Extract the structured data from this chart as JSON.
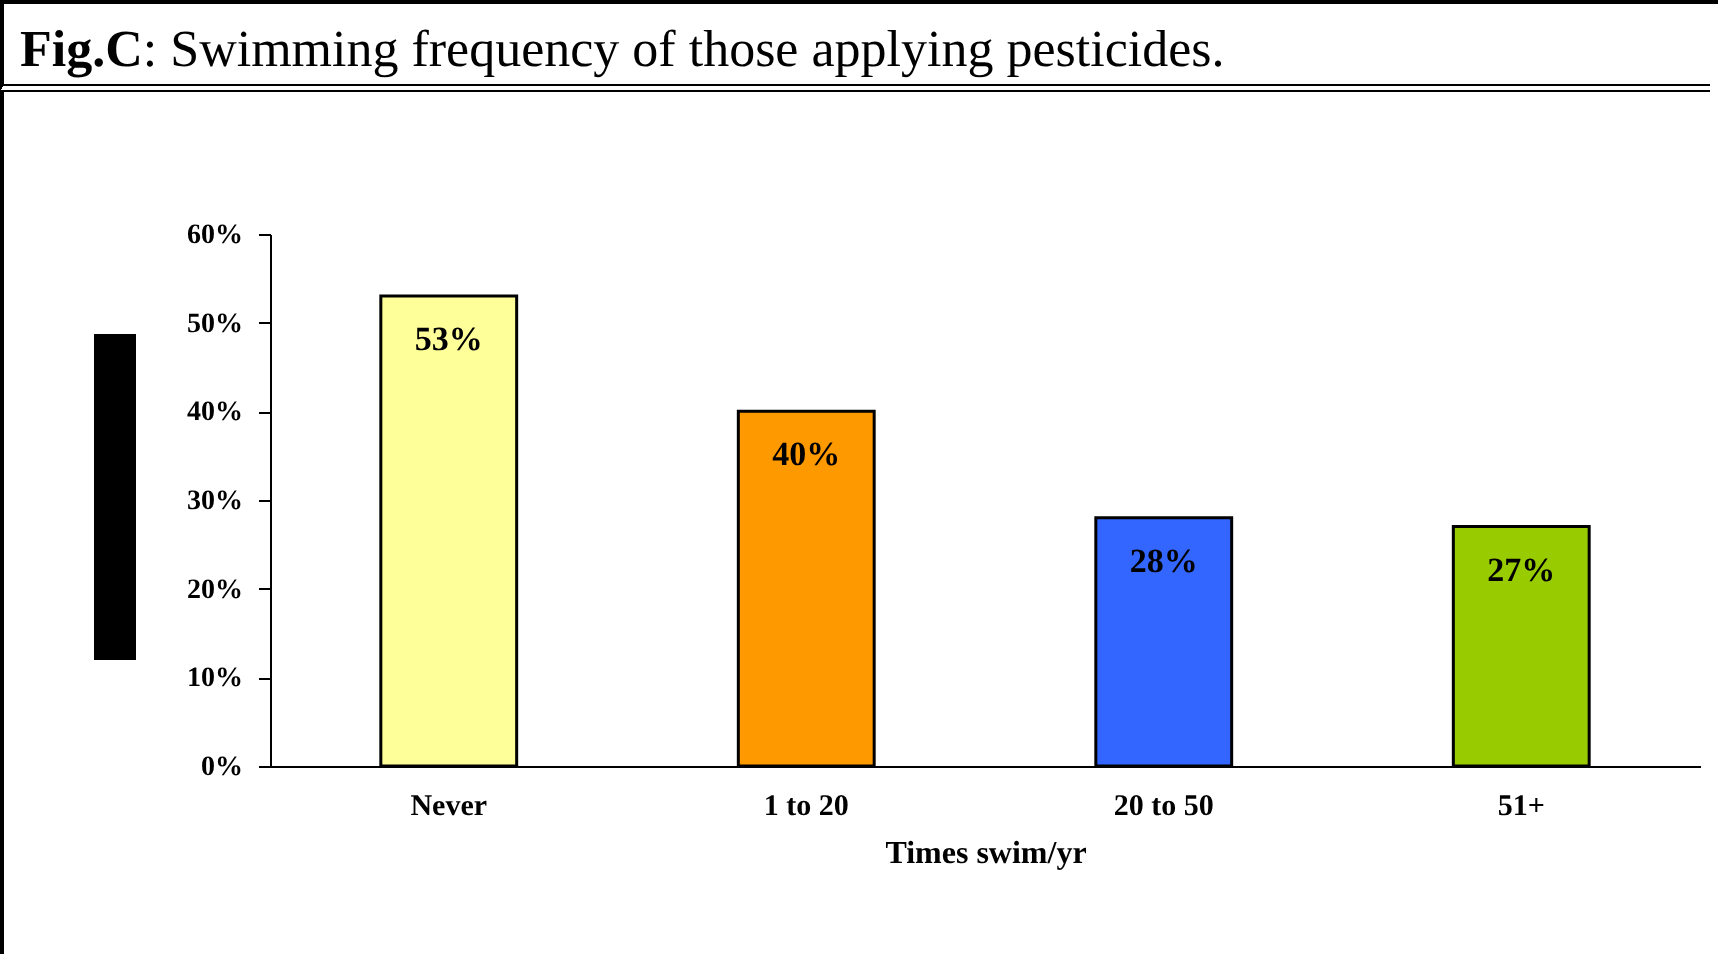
{
  "chart_data": {
    "type": "bar",
    "title": "Fig.C: Swimming frequency of those applying pesticides.",
    "xlabel": "Times swim/yr",
    "categories": [
      "Never",
      "1 to 20",
      "20 to 50",
      "51+"
    ],
    "values": [
      53,
      40,
      28,
      27
    ],
    "colors": [
      "#ffff99",
      "#ff9900",
      "#3366ff",
      "#99cc00"
    ],
    "value_labels": [
      "53%",
      "40%",
      "28%",
      "27%"
    ],
    "ylim": [
      0,
      60
    ],
    "yticks": [
      {
        "value": 0,
        "label": "0%"
      },
      {
        "value": 10,
        "label": "10%"
      },
      {
        "value": 20,
        "label": "20%"
      },
      {
        "value": 30,
        "label": "30%"
      },
      {
        "value": 40,
        "label": "40%"
      },
      {
        "value": 50,
        "label": "50%"
      },
      {
        "value": 60,
        "label": "60%"
      }
    ],
    "grid": false
  }
}
